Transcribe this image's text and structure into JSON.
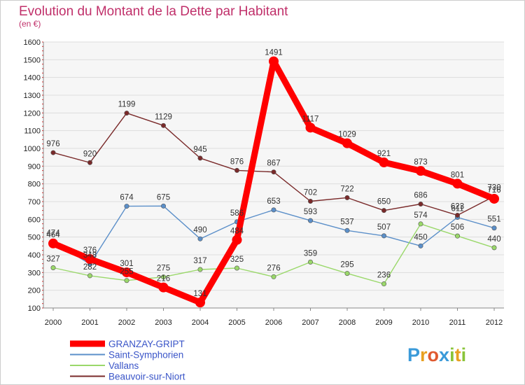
{
  "chart_data": {
    "type": "line",
    "title": "Evolution du Montant de la Dette par Habitant",
    "subtitle": "(en €)",
    "x": [
      "2000",
      "2001",
      "2002",
      "2003",
      "2004",
      "2005",
      "2006",
      "2007",
      "2008",
      "2009",
      "2010",
      "2011",
      "2012"
    ],
    "ylim": [
      100,
      1600
    ],
    "yticks": [
      100,
      200,
      300,
      400,
      500,
      600,
      700,
      800,
      900,
      1000,
      1100,
      1200,
      1300,
      1400,
      1500,
      1600
    ],
    "grid": true,
    "legend_position": "bottom-left",
    "series": [
      {
        "name": "GRANZAY-GRIPT",
        "color": "#ff0000",
        "values": [
          464,
          376,
          301,
          216,
          131,
          484,
          1491,
          1117,
          1029,
          921,
          873,
          801,
          716
        ]
      },
      {
        "name": "Saint-Symphorien",
        "color": "#5b8fc9",
        "values": [
          474,
          348,
          674,
          675,
          490,
          586,
          653,
          593,
          537,
          507,
          450,
          611,
          551
        ]
      },
      {
        "name": "Vallans",
        "color": "#9ad86a",
        "values": [
          327,
          282,
          255,
          275,
          317,
          325,
          276,
          359,
          295,
          236,
          574,
          506,
          440
        ]
      },
      {
        "name": "Beauvoir-sur-Niort",
        "color": "#7a2a2a",
        "values": [
          976,
          920,
          1199,
          1129,
          945,
          876,
          867,
          702,
          722,
          650,
          686,
          623,
          730
        ]
      }
    ]
  },
  "logo": {
    "text": "Proxiti"
  }
}
